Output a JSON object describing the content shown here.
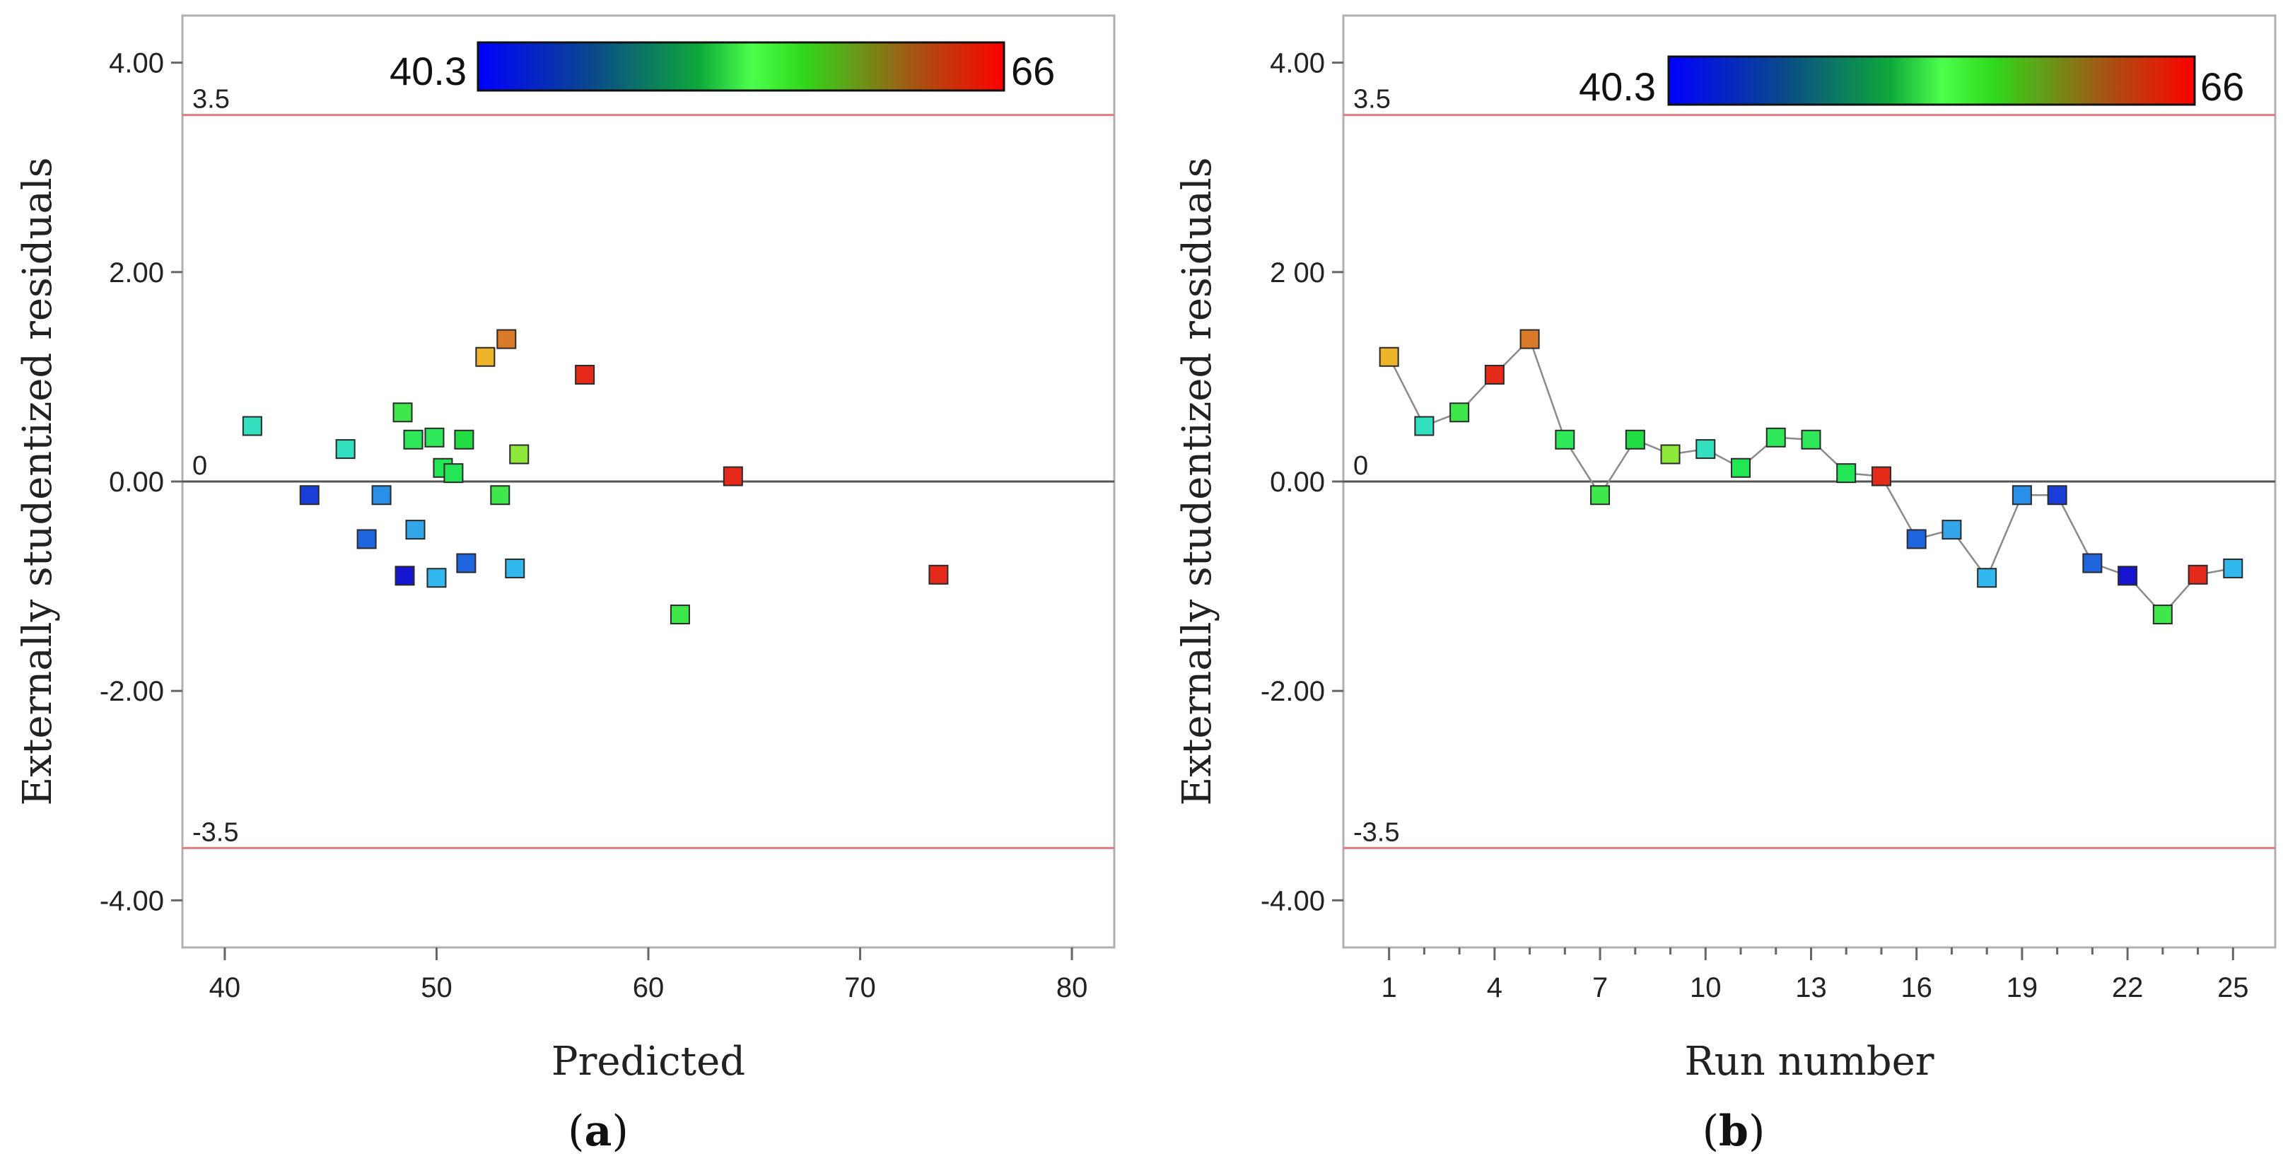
{
  "chart_data": [
    {
      "id": "a",
      "type": "scatter",
      "caption_open": "(",
      "caption_letter": "a",
      "caption_close": ")",
      "xlabel": "Predicted",
      "ylabel": "Externally studentized residuals",
      "xlim": [
        38,
        82
      ],
      "ylim": [
        -4.45,
        4.45
      ],
      "xticks": [
        40,
        50,
        60,
        70,
        80
      ],
      "xtick_labels": [
        "40",
        "50",
        "60",
        "70",
        "80"
      ],
      "yticks": [
        4,
        2,
        0,
        -2,
        -4
      ],
      "ytick_labels": [
        "4.00",
        "2.00",
        "0.00",
        "-2.00",
        "-4.00"
      ],
      "reference_lines": [
        {
          "value": 3.5,
          "label": "3.5",
          "color": "#e07b80"
        },
        {
          "value": 0,
          "label": "0",
          "color": "#555555"
        },
        {
          "value": -3.5,
          "label": "-3.5",
          "color": "#e07b80"
        }
      ],
      "colorbar": {
        "min_label": "40.3",
        "max_label": "66",
        "min": 40.3,
        "max": 66
      },
      "points": [
        {
          "x": 41.3,
          "y": 0.53,
          "color": "#33e0c0"
        },
        {
          "x": 44.0,
          "y": -0.13,
          "color": "#1a3fd9"
        },
        {
          "x": 45.7,
          "y": 0.31,
          "color": "#33e0c0"
        },
        {
          "x": 46.7,
          "y": -0.55,
          "color": "#1f66de"
        },
        {
          "x": 47.4,
          "y": -0.13,
          "color": "#2a8fe6"
        },
        {
          "x": 48.4,
          "y": 0.66,
          "color": "#3ee84a"
        },
        {
          "x": 48.5,
          "y": -0.9,
          "color": "#1616d0"
        },
        {
          "x": 48.9,
          "y": 0.4,
          "color": "#2fe85a"
        },
        {
          "x": 49.0,
          "y": -0.46,
          "color": "#33a6ea"
        },
        {
          "x": 49.9,
          "y": 0.42,
          "color": "#2fe85a"
        },
        {
          "x": 50.0,
          "y": -0.92,
          "color": "#33b8ee"
        },
        {
          "x": 50.3,
          "y": 0.13,
          "color": "#22e654"
        },
        {
          "x": 50.8,
          "y": 0.08,
          "color": "#22e654"
        },
        {
          "x": 51.3,
          "y": 0.4,
          "color": "#22dc44"
        },
        {
          "x": 51.4,
          "y": -0.78,
          "color": "#1f66de"
        },
        {
          "x": 52.3,
          "y": 1.19,
          "color": "#f0b42a"
        },
        {
          "x": 53.0,
          "y": -0.13,
          "color": "#3ee84a"
        },
        {
          "x": 53.3,
          "y": 1.36,
          "color": "#d87a2a"
        },
        {
          "x": 53.7,
          "y": -0.83,
          "color": "#33b8ee"
        },
        {
          "x": 53.9,
          "y": 0.26,
          "color": "#8ee83a"
        },
        {
          "x": 57.0,
          "y": 1.02,
          "color": "#e62a1a"
        },
        {
          "x": 61.5,
          "y": -1.27,
          "color": "#3ee84a"
        },
        {
          "x": 64.0,
          "y": 0.05,
          "color": "#e62a1a"
        },
        {
          "x": 73.7,
          "y": -0.89,
          "color": "#e62a1a"
        }
      ]
    },
    {
      "id": "b",
      "type": "line",
      "caption_open": "(",
      "caption_letter": "b",
      "caption_close": ")",
      "xlabel": "Run number",
      "ylabel": "Externally studentized residuals",
      "xlim": [
        -0.3,
        26.2
      ],
      "ylim": [
        -4.45,
        4.45
      ],
      "xticks": [
        1,
        4,
        7,
        10,
        13,
        16,
        19,
        22,
        25
      ],
      "xtick_labels": [
        "1",
        "4",
        "7",
        "10",
        "13",
        "16",
        "19",
        "22",
        "25"
      ],
      "minor_xticks": [
        2,
        3,
        5,
        6,
        8,
        9,
        11,
        12,
        14,
        15,
        17,
        18,
        20,
        21,
        23,
        24
      ],
      "yticks": [
        4,
        2,
        0,
        -2,
        -4
      ],
      "ytick_labels": [
        "4.00",
        "2 00",
        "0.00",
        "-2.00",
        "-4.00"
      ],
      "reference_lines": [
        {
          "value": 3.5,
          "label": "3.5",
          "color": "#e07b80"
        },
        {
          "value": 0,
          "label": "0",
          "color": "#555555"
        },
        {
          "value": -3.5,
          "label": "-3.5",
          "color": "#e07b80"
        }
      ],
      "colorbar": {
        "min_label": "40.3",
        "max_label": "66",
        "min": 40.3,
        "max": 66
      },
      "points": [
        {
          "x": 1,
          "y": 1.19,
          "color": "#f0b42a"
        },
        {
          "x": 2,
          "y": 0.53,
          "color": "#33e0c0"
        },
        {
          "x": 3,
          "y": 0.66,
          "color": "#3ee84a"
        },
        {
          "x": 4,
          "y": 1.02,
          "color": "#e62a1a"
        },
        {
          "x": 5,
          "y": 1.36,
          "color": "#d87a2a"
        },
        {
          "x": 6,
          "y": 0.4,
          "color": "#2fe85a"
        },
        {
          "x": 7,
          "y": -0.13,
          "color": "#3ee84a"
        },
        {
          "x": 8,
          "y": 0.4,
          "color": "#22dc44"
        },
        {
          "x": 9,
          "y": 0.26,
          "color": "#8ee83a"
        },
        {
          "x": 10,
          "y": 0.31,
          "color": "#33e0c0"
        },
        {
          "x": 11,
          "y": 0.13,
          "color": "#22e654"
        },
        {
          "x": 12,
          "y": 0.42,
          "color": "#2fe85a"
        },
        {
          "x": 13,
          "y": 0.4,
          "color": "#2fe85a"
        },
        {
          "x": 14,
          "y": 0.08,
          "color": "#22e654"
        },
        {
          "x": 15,
          "y": 0.05,
          "color": "#e62a1a"
        },
        {
          "x": 16,
          "y": -0.55,
          "color": "#1f66de"
        },
        {
          "x": 17,
          "y": -0.46,
          "color": "#33a6ea"
        },
        {
          "x": 18,
          "y": -0.92,
          "color": "#33b8ee"
        },
        {
          "x": 19,
          "y": -0.13,
          "color": "#2a8fe6"
        },
        {
          "x": 20,
          "y": -0.13,
          "color": "#1a3fd9"
        },
        {
          "x": 21,
          "y": -0.78,
          "color": "#1f66de"
        },
        {
          "x": 22,
          "y": -0.9,
          "color": "#1616d0"
        },
        {
          "x": 23,
          "y": -1.27,
          "color": "#3ee84a"
        },
        {
          "x": 24,
          "y": -0.89,
          "color": "#e62a1a"
        },
        {
          "x": 25,
          "y": -0.83,
          "color": "#33b8ee"
        }
      ]
    }
  ]
}
